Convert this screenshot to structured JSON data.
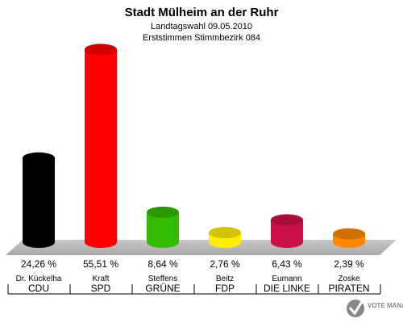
{
  "header": {
    "title": "Stadt Mülheim an der Ruhr",
    "subtitle": "Landtagswahl 09.05.2010",
    "subtitle2": "Erststimmen Stimmbezirk 084"
  },
  "logo_text": "VOTE MANAGER",
  "chart_data": {
    "type": "bar",
    "title": "Stadt Mülheim an der Ruhr",
    "subtitle": "Landtagswahl 09.05.2010 / Erststimmen Stimmbezirk 084",
    "categories": [
      "CDU",
      "SPD",
      "GRÜNE",
      "FDP",
      "DIE LINKE",
      "PIRATEN"
    ],
    "candidates": [
      "Dr. Kückelha",
      "Kraft",
      "Steffens",
      "Beitz",
      "Eumann",
      "Zoske"
    ],
    "values": [
      24.26,
      55.51,
      8.64,
      2.76,
      6.43,
      2.39
    ],
    "value_labels": [
      "24,26 %",
      "55,51 %",
      "8,64 %",
      "2,76 %",
      "6,43 %",
      "2,39 %"
    ],
    "colors": [
      "#000000",
      "#ff0000",
      "#33bb00",
      "#ffee00",
      "#cc1144",
      "#ff8800"
    ],
    "unit": "%",
    "grid": false,
    "legend": "none"
  }
}
